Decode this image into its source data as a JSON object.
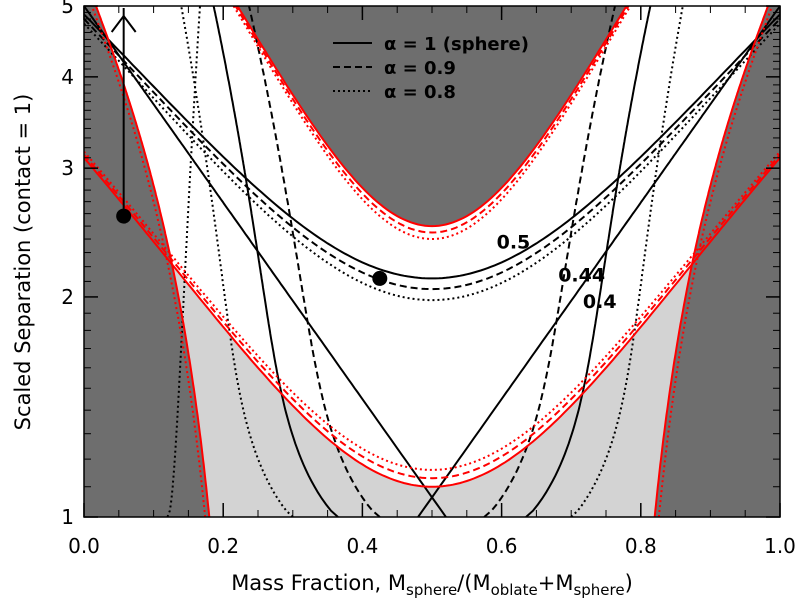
{
  "chart_data": {
    "type": "line",
    "xlabel_main": "Mass Fraction, M",
    "xlabel_sub1": "sphere",
    "xlabel_mid": "/(M",
    "xlabel_sub2": "oblate",
    "xlabel_mid2": "+M",
    "xlabel_sub3": "sphere",
    "xlabel_end": ")",
    "ylabel": "Scaled Separation (contact = 1)",
    "xlim": [
      0.0,
      1.0
    ],
    "ylim": [
      1,
      5
    ],
    "yscale": "log",
    "x_ticks": [
      "0.0",
      "0.2",
      "0.4",
      "0.6",
      "0.8",
      "1.0"
    ],
    "y_ticks": [
      "1",
      "2",
      "3",
      "4",
      "5"
    ],
    "legend": [
      {
        "label": "α = 1 (sphere)",
        "style": "solid"
      },
      {
        "label": "α = 0.9",
        "style": "dashed"
      },
      {
        "label": "α = 0.8",
        "style": "dotted"
      }
    ],
    "legend_placement": "top-center",
    "contour_labels": [
      "0.5",
      "0.44",
      "0.4"
    ],
    "points": [
      {
        "x": 0.057,
        "y": 2.58
      },
      {
        "x": 0.425,
        "y": 2.12
      }
    ],
    "arrow": {
      "x": 0.057,
      "from": 2.58,
      "to": 5.0
    },
    "colors": {
      "dark_region": "#6e6e6e",
      "light_region": "#d3d3d3",
      "boundary": "#ff0000",
      "contour": "#000000"
    }
  }
}
